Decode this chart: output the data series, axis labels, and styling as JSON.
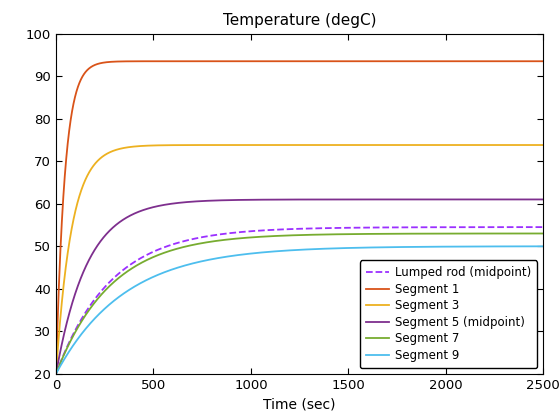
{
  "title": "Temperature (degC)",
  "xlabel": "Time (sec)",
  "xlim": [
    0,
    2500
  ],
  "ylim": [
    20,
    100
  ],
  "yticks": [
    20,
    30,
    40,
    50,
    60,
    70,
    80,
    90,
    100
  ],
  "xticks": [
    0,
    500,
    1000,
    1500,
    2000,
    2500
  ],
  "lines": [
    {
      "label": "Lumped rod (midpoint)",
      "color": "#9B30FF",
      "linestyle": "--",
      "linewidth": 1.3,
      "T_inf": 54.5,
      "T0": 20.0,
      "tau": 280.0
    },
    {
      "label": "Segment 1",
      "color": "#D95319",
      "linestyle": "-",
      "linewidth": 1.3,
      "T_inf": 93.5,
      "T0": 20.0,
      "tau": 45.0
    },
    {
      "label": "Segment 3",
      "color": "#EDB120",
      "linestyle": "-",
      "linewidth": 1.3,
      "T_inf": 73.8,
      "T0": 20.0,
      "tau": 80.0
    },
    {
      "label": "Segment 5 (midpoint)",
      "color": "#7E2F8E",
      "linestyle": "-",
      "linewidth": 1.3,
      "T_inf": 61.0,
      "T0": 20.0,
      "tau": 160.0
    },
    {
      "label": "Segment 7",
      "color": "#77AC30",
      "linestyle": "-",
      "linewidth": 1.3,
      "T_inf": 53.0,
      "T0": 20.0,
      "tau": 280.0
    },
    {
      "label": "Segment 9",
      "color": "#4DBEEE",
      "linestyle": "-",
      "linewidth": 1.3,
      "T_inf": 50.0,
      "T0": 20.0,
      "tau": 350.0
    }
  ],
  "legend_loc": "lower right",
  "title_fontsize": 11,
  "axis_fontsize": 10,
  "tick_fontsize": 9.5,
  "legend_fontsize": 8.5
}
